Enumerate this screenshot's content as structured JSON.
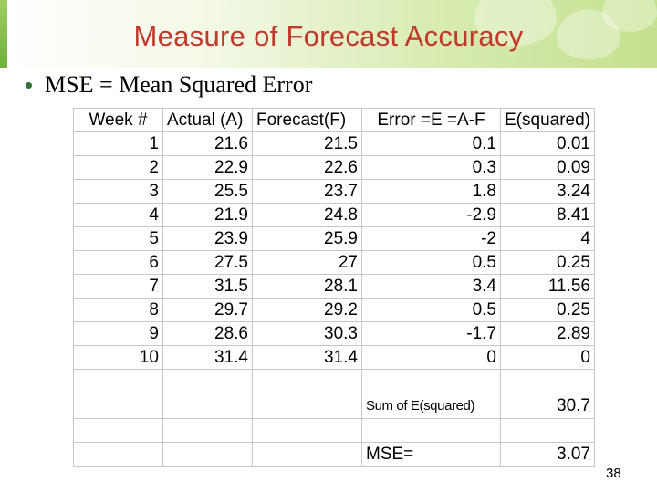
{
  "slide": {
    "title": "Measure of Forecast Accuracy",
    "bullet": "MSE = Mean Squared Error",
    "page_number": "38"
  },
  "table": {
    "headers": [
      "Week #",
      "Actual (A)",
      "Forecast(F)",
      "Error =E =A-F",
      "E(squared)"
    ],
    "rows": [
      [
        "1",
        "21.6",
        "21.5",
        "0.1",
        "0.01"
      ],
      [
        "2",
        "22.9",
        "22.6",
        "0.3",
        "0.09"
      ],
      [
        "3",
        "25.5",
        "23.7",
        "1.8",
        "3.24"
      ],
      [
        "4",
        "21.9",
        "24.8",
        "-2.9",
        "8.41"
      ],
      [
        "5",
        "23.9",
        "25.9",
        "-2",
        "4"
      ],
      [
        "6",
        "27.5",
        "27",
        "0.5",
        "0.25"
      ],
      [
        "7",
        "31.5",
        "28.1",
        "3.4",
        "11.56"
      ],
      [
        "8",
        "29.7",
        "29.2",
        "0.5",
        "0.25"
      ],
      [
        "9",
        "28.6",
        "30.3",
        "-1.7",
        "2.89"
      ],
      [
        "10",
        "31.4",
        "31.4",
        "0",
        "0"
      ]
    ],
    "sum_label": "Sum of E(squared)",
    "sum_value": "30.7",
    "mse_label": "MSE=",
    "mse_value": "3.07"
  },
  "colors": {
    "title": "#c0392b",
    "header_band": "#c4e08e",
    "grid_lines": "#c8c8c8"
  }
}
